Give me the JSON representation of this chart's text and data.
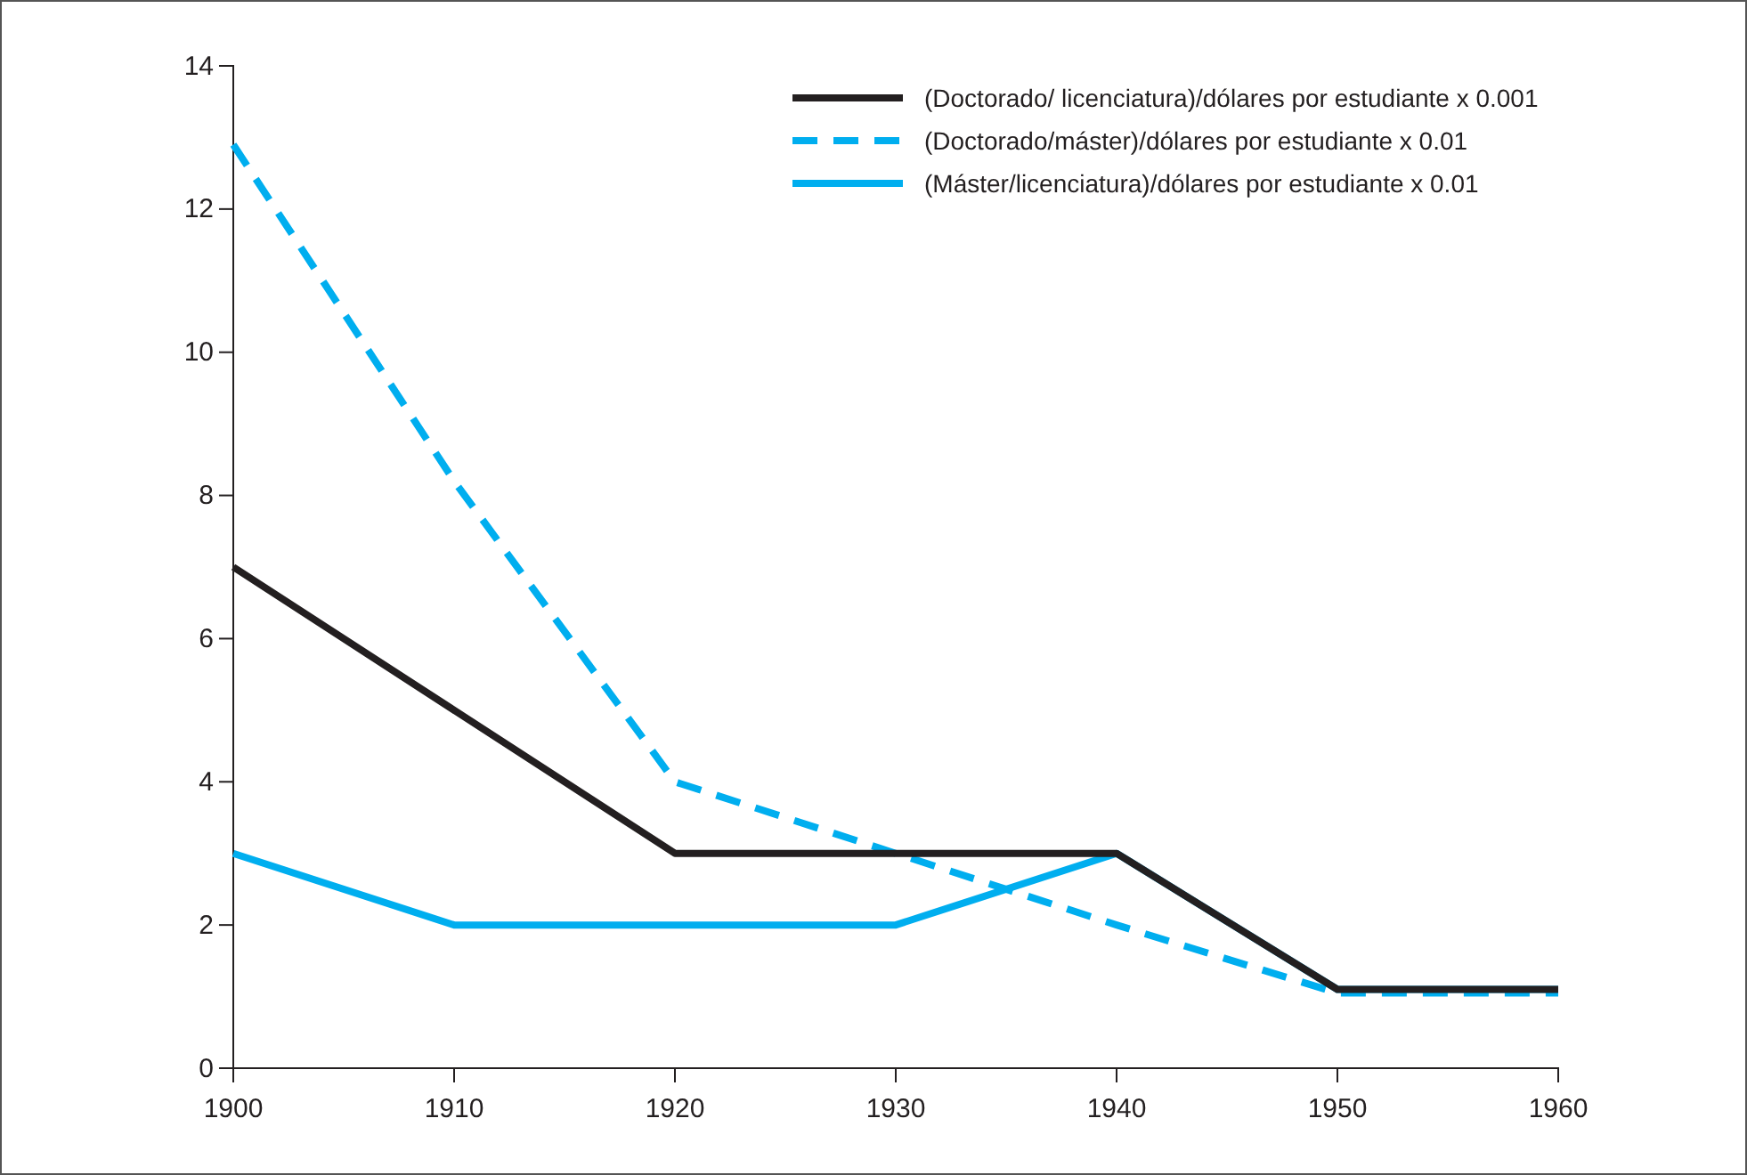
{
  "chart_data": {
    "type": "line",
    "x": [
      1900,
      1910,
      1920,
      1930,
      1940,
      1950,
      1960
    ],
    "xlim": [
      1900,
      1960
    ],
    "xticks": [
      1900,
      1910,
      1920,
      1930,
      1940,
      1950,
      1960
    ],
    "ylim": [
      0,
      14
    ],
    "yticks": [
      0,
      2,
      4,
      6,
      8,
      10,
      12,
      14
    ],
    "series": [
      {
        "name": "(Doctorado/ licenciatura)/dólares por estudiante x 0.001",
        "color": "#231f20",
        "line_style": "solid",
        "values": [
          7,
          5,
          3,
          3,
          3,
          1.1,
          1.1
        ]
      },
      {
        "name": "(Doctorado/máster)/dólares por estudiante x 0.01",
        "color": "#00aeef",
        "line_style": "dashed",
        "values": [
          12.9,
          8.2,
          4,
          3,
          2,
          1.05,
          1.05
        ]
      },
      {
        "name": "(Máster/licenciatura)/dólares por estudiante x 0.01",
        "color": "#00aeef",
        "line_style": "solid",
        "values": [
          3,
          2,
          2,
          2,
          3,
          1.1,
          1.1
        ]
      }
    ],
    "grid": false,
    "legend": "top right",
    "marker": "none"
  }
}
